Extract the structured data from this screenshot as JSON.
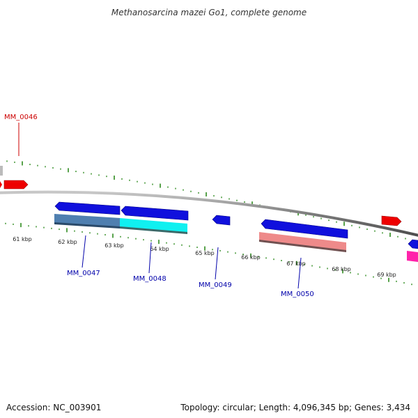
{
  "title": "Methanosarcina mazei Go1, complete genome",
  "accession_text": "Accession: NC_003901",
  "summary_text": "Topology: circular; Length: 4,096,345 bp; Genes: 3,434",
  "colors": {
    "backbone": "#7a7a7a",
    "ticks": "#2e8b1e",
    "forward_gene": "#ee0000",
    "reverse_gene": "#1010dd",
    "label_forward": "#cc0000",
    "label_reverse": "#0000aa",
    "cds_steelblue": "#4f7fb0",
    "cds_cyan": "#10f0f0",
    "cds_salmon": "#ee8a8a",
    "cds_magenta": "#ff22aa",
    "grey_feature": "#bbbbbb"
  },
  "kbp_labels": [
    "61 kbp",
    "62 kbp",
    "63 kbp",
    "64 kbp",
    "65 kbp",
    "66 kbp",
    "67 kbp",
    "68 kbp",
    "69 kbp"
  ],
  "gene_labels": [
    {
      "id": "MM_0046",
      "text": "MM_0046",
      "strand": "forward"
    },
    {
      "id": "MM_0047",
      "text": "MM_0047",
      "strand": "reverse"
    },
    {
      "id": "MM_0048",
      "text": "MM_0048",
      "strand": "reverse"
    },
    {
      "id": "MM_0049",
      "text": "MM_0049",
      "strand": "reverse"
    },
    {
      "id": "MM_0050",
      "text": "MM_0050",
      "strand": "reverse"
    }
  ]
}
